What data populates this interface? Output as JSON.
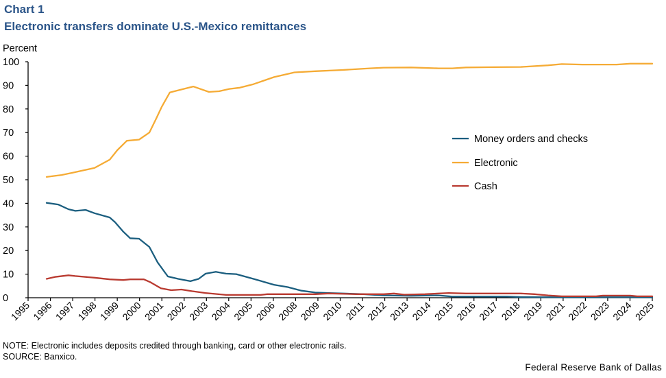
{
  "header": {
    "chart_label": "Chart 1",
    "title": "Electronic transfers dominate U.S.-Mexico remittances"
  },
  "footer": {
    "note": "NOTE:  Electronic includes deposits credited through banking, card or other electronic rails.",
    "source": "SOURCE:  Banxico.",
    "credit": "Federal Reserve Bank of Dallas"
  },
  "chart_data": {
    "type": "line",
    "title": "Electronic transfers dominate U.S.-Mexico remittances",
    "xlabel": "",
    "ylabel": "Percent",
    "ylim": [
      0,
      100
    ],
    "yticks": [
      0,
      10,
      20,
      30,
      40,
      50,
      60,
      70,
      80,
      90,
      100
    ],
    "grid": false,
    "legend_position": "center-right",
    "x_tick_labels": [
      "1995",
      "1996",
      "1997",
      "1998",
      "1999",
      "2000",
      "2001",
      "2002",
      "2003",
      "2004",
      "2005",
      "2006",
      "2008",
      "2009",
      "2010",
      "2011",
      "2012",
      "2013",
      "2014",
      "2015",
      "2016",
      "2017",
      "2018",
      "2019",
      "2021",
      "2022",
      "2023",
      "2024",
      "2025"
    ],
    "x_note": "x values are positions in axis-tick units (0 = first tick label '1995', 28 = last tick label '2025')",
    "series": [
      {
        "name": "Money orders and checks",
        "color": "#1b5e7f",
        "x": [
          0.83,
          1.35,
          1.81,
          2.12,
          2.58,
          2.98,
          3.66,
          3.9,
          4.27,
          4.58,
          4.98,
          5.44,
          5.81,
          6.27,
          6.73,
          7.28,
          7.65,
          7.96,
          8.42,
          8.88,
          9.34,
          10.11,
          11.03,
          11.65,
          12.26,
          12.88,
          13.49,
          15.03,
          15.95,
          17.18,
          18.41,
          19.03,
          20.25,
          21.48,
          22.1,
          23.33,
          28.0
        ],
        "values": [
          40.2,
          39.5,
          37.5,
          36.8,
          37.2,
          35.8,
          34.0,
          32.0,
          28.0,
          25.2,
          25.0,
          21.5,
          15.0,
          9.0,
          8.0,
          7.0,
          8.0,
          10.2,
          11.0,
          10.2,
          10.0,
          8.0,
          5.5,
          4.5,
          3.0,
          2.2,
          2.0,
          1.5,
          1.0,
          0.8,
          1.0,
          0.5,
          0.5,
          0.5,
          0.3,
          0.2,
          0.2
        ]
      },
      {
        "name": "Electronic",
        "color": "#f5ab35",
        "x": [
          0.83,
          1.5,
          2.0,
          2.98,
          3.66,
          4.0,
          4.43,
          4.98,
          5.44,
          5.75,
          6.0,
          6.36,
          6.98,
          7.41,
          8.11,
          8.57,
          9.03,
          9.5,
          10.11,
          11.03,
          11.95,
          12.88,
          14.11,
          15.33,
          15.95,
          17.18,
          18.41,
          19.03,
          19.64,
          20.87,
          22.1,
          23.33,
          23.94,
          24.86,
          26.4,
          27.01,
          28.0
        ],
        "values": [
          51.2,
          52.0,
          53.0,
          55.0,
          58.5,
          62.5,
          66.5,
          67.0,
          70.0,
          76.0,
          81.0,
          87.0,
          88.5,
          89.5,
          87.2,
          87.5,
          88.5,
          89.0,
          90.5,
          93.5,
          95.5,
          96.0,
          96.5,
          97.2,
          97.5,
          97.6,
          97.2,
          97.2,
          97.6,
          97.7,
          97.8,
          98.5,
          99.0,
          98.8,
          98.8,
          99.2,
          99.2
        ]
      },
      {
        "name": "Cash",
        "color": "#b93a30",
        "x": [
          0.83,
          1.2,
          1.81,
          2.12,
          2.98,
          3.66,
          4.27,
          4.58,
          5.19,
          5.5,
          5.96,
          6.42,
          6.88,
          7.34,
          7.96,
          8.88,
          10.42,
          10.73,
          12.88,
          13.49,
          14.72,
          15.95,
          16.41,
          16.87,
          17.8,
          18.41,
          18.87,
          19.64,
          22.1,
          22.71,
          23.33,
          23.94,
          25.48,
          25.78,
          27.01,
          27.32,
          28.0
        ],
        "values": [
          8.0,
          8.8,
          9.5,
          9.2,
          8.5,
          7.8,
          7.5,
          7.8,
          7.8,
          6.5,
          4.0,
          3.2,
          3.5,
          2.8,
          2.0,
          1.2,
          1.2,
          1.5,
          1.5,
          1.8,
          1.5,
          1.5,
          1.8,
          1.3,
          1.5,
          1.8,
          2.0,
          1.8,
          1.8,
          1.5,
          1.0,
          0.6,
          0.6,
          0.9,
          0.9,
          0.6,
          0.6
        ]
      }
    ]
  }
}
